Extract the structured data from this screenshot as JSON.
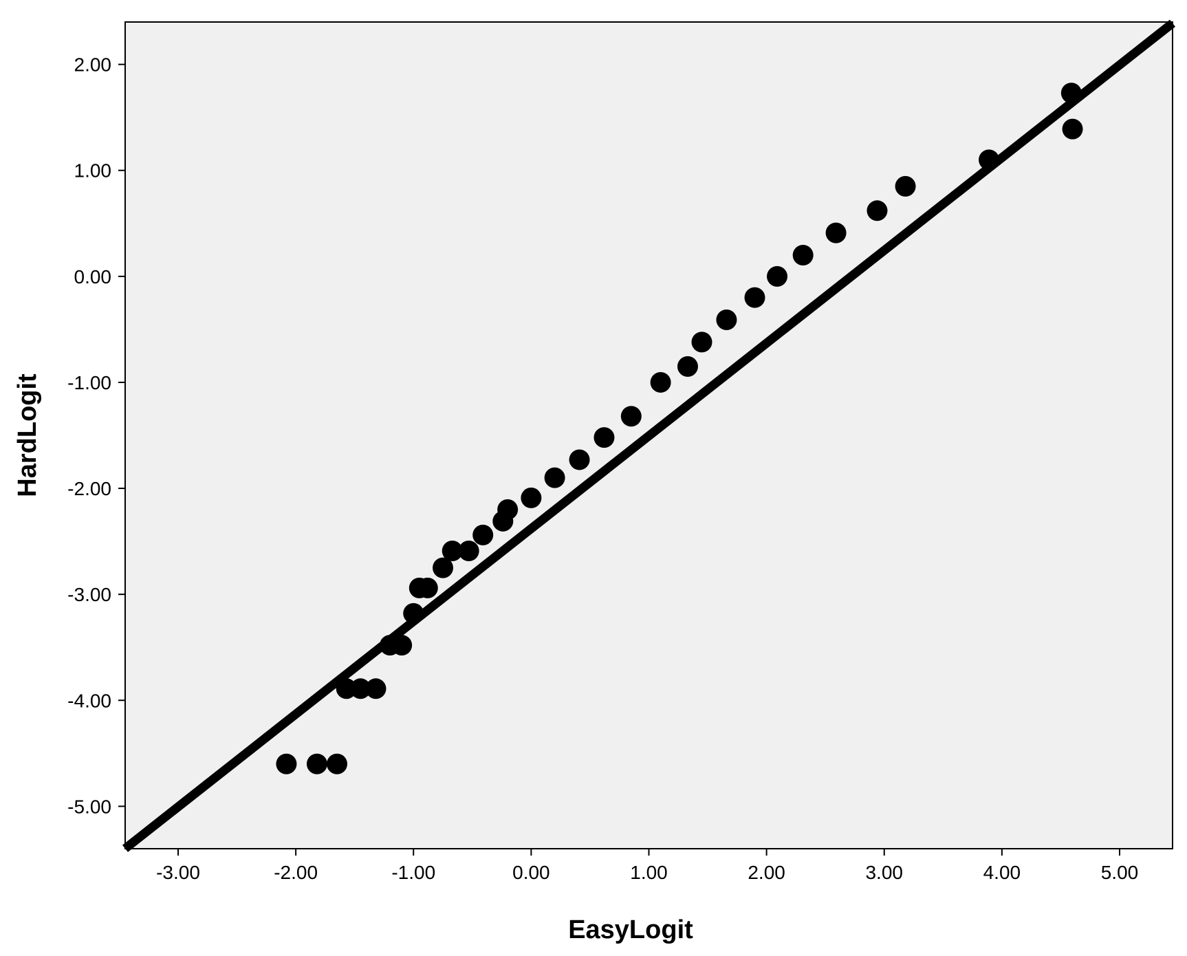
{
  "chart_data": {
    "type": "scatter",
    "title": "",
    "xlabel": "EasyLogit",
    "ylabel": "HardLogit",
    "xlim": [
      -3.45,
      5.45
    ],
    "ylim": [
      -5.4,
      2.4
    ],
    "xticks": [
      -3,
      -2,
      -1,
      0,
      1,
      2,
      3,
      4,
      5
    ],
    "yticks": [
      -5,
      -4,
      -3,
      -2,
      -1,
      0,
      1,
      2
    ],
    "xtick_labels": [
      "-3.00",
      "-2.00",
      "-1.00",
      "0.00",
      "1.00",
      "2.00",
      "3.00",
      "4.00",
      "5.00"
    ],
    "ytick_labels": [
      "-5.00",
      "-4.00",
      "-3.00",
      "-2.00",
      "-1.00",
      "0.00",
      "1.00",
      "2.00"
    ],
    "grid": false,
    "background": "#f0f0f0",
    "marker_color": "#000000",
    "points": [
      {
        "x": -2.08,
        "y": -4.6
      },
      {
        "x": -1.82,
        "y": -4.6
      },
      {
        "x": -1.65,
        "y": -4.6
      },
      {
        "x": -1.57,
        "y": -3.89
      },
      {
        "x": -1.45,
        "y": -3.89
      },
      {
        "x": -1.32,
        "y": -3.89
      },
      {
        "x": -1.2,
        "y": -3.48
      },
      {
        "x": -1.1,
        "y": -3.48
      },
      {
        "x": -1.0,
        "y": -3.18
      },
      {
        "x": -0.95,
        "y": -2.94
      },
      {
        "x": -0.88,
        "y": -2.94
      },
      {
        "x": -0.75,
        "y": -2.75
      },
      {
        "x": -0.67,
        "y": -2.59
      },
      {
        "x": -0.53,
        "y": -2.59
      },
      {
        "x": -0.41,
        "y": -2.44
      },
      {
        "x": -0.24,
        "y": -2.31
      },
      {
        "x": -0.2,
        "y": -2.2
      },
      {
        "x": 0.0,
        "y": -2.09
      },
      {
        "x": 0.2,
        "y": -1.9
      },
      {
        "x": 0.41,
        "y": -1.73
      },
      {
        "x": 0.62,
        "y": -1.52
      },
      {
        "x": 0.85,
        "y": -1.32
      },
      {
        "x": 1.1,
        "y": -1.0
      },
      {
        "x": 1.33,
        "y": -0.85
      },
      {
        "x": 1.45,
        "y": -0.62
      },
      {
        "x": 1.66,
        "y": -0.41
      },
      {
        "x": 1.9,
        "y": -0.2
      },
      {
        "x": 2.09,
        "y": 0.0
      },
      {
        "x": 2.31,
        "y": 0.2
      },
      {
        "x": 2.59,
        "y": 0.41
      },
      {
        "x": 2.94,
        "y": 0.62
      },
      {
        "x": 3.18,
        "y": 0.85
      },
      {
        "x": 3.89,
        "y": 1.1
      },
      {
        "x": 4.59,
        "y": 1.73
      },
      {
        "x": 4.6,
        "y": 1.39
      }
    ],
    "reference_line": {
      "slope": 0.875,
      "intercept": -2.38
    }
  }
}
